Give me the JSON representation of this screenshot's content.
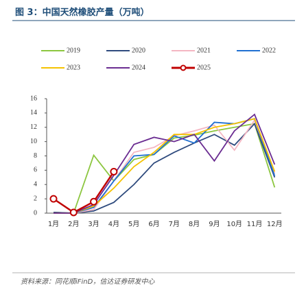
{
  "chart_data": {
    "type": "line",
    "title": "图 3：中国天然橡胶产量（万吨）",
    "source": "资料来源：同花顺iFinD，信达证券研发中心",
    "categories": [
      "1月",
      "2月",
      "3月",
      "4月",
      "5月",
      "6月",
      "7月",
      "8月",
      "9月",
      "10月",
      "11月",
      "12月"
    ],
    "ylim": [
      0,
      16
    ],
    "yticks": [
      0,
      2,
      4,
      6,
      8,
      10,
      12,
      14,
      16
    ],
    "series": [
      {
        "name": "2019",
        "color": "#8cc63f",
        "values": [
          0.1,
          0,
          8.1,
          4.5,
          7.5,
          8.2,
          10.5,
          10.9,
          11.5,
          12.0,
          12.5,
          3.6
        ]
      },
      {
        "name": "2020",
        "color": "#2e4a7d",
        "values": [
          0.1,
          0,
          0.3,
          1.5,
          4.0,
          7.0,
          8.5,
          9.8,
          11.0,
          9.5,
          12.5,
          5.0
        ]
      },
      {
        "name": "2021",
        "color": "#f4b6c2",
        "values": [
          0,
          0,
          0.5,
          4.5,
          8.5,
          9.2,
          10.8,
          11.5,
          12.3,
          8.8,
          13.0,
          5.5
        ]
      },
      {
        "name": "2022",
        "color": "#1f6fd1",
        "values": [
          0,
          0,
          0.8,
          4.5,
          8.0,
          8.2,
          10.8,
          9.8,
          12.7,
          12.5,
          13.2,
          5.2
        ]
      },
      {
        "name": "2023",
        "color": "#f5c200",
        "values": [
          0,
          0,
          1.0,
          3.5,
          6.5,
          8.5,
          11.0,
          11.0,
          12.0,
          12.5,
          13.2,
          5.8
        ]
      },
      {
        "name": "2024",
        "color": "#6a2c91",
        "values": [
          0,
          0,
          1.2,
          5.3,
          9.6,
          10.6,
          10.0,
          11.0,
          7.3,
          11.5,
          13.8,
          6.8
        ]
      },
      {
        "name": "2025",
        "color": "#c00000",
        "marker": true,
        "values": [
          2.0,
          0.1,
          1.6,
          5.8,
          null,
          null,
          null,
          null,
          null,
          null,
          null,
          null
        ]
      }
    ]
  }
}
